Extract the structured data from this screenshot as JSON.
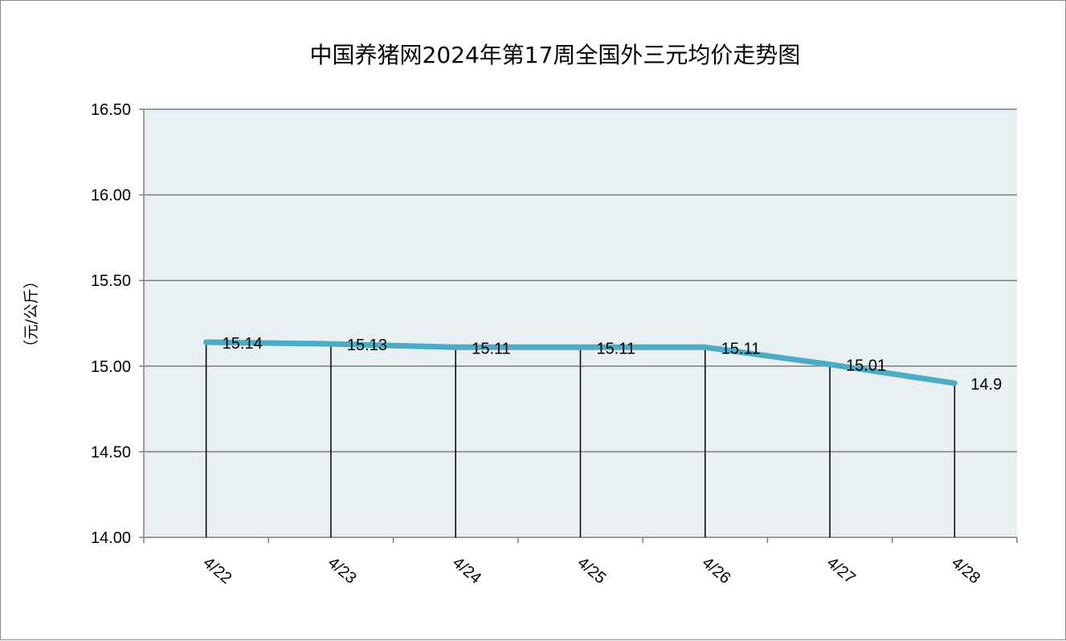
{
  "chart_data": {
    "type": "line",
    "title": "中国养猪网2024年第17周全国外三元均价走势图",
    "ylabel": "（元/公斤）",
    "xlabel": "",
    "categories": [
      "4/22",
      "4/23",
      "4/24",
      "4/25",
      "4/26",
      "4/27",
      "4/28"
    ],
    "series": [
      {
        "values": [
          15.14,
          15.13,
          15.11,
          15.11,
          15.11,
          15.01,
          14.9
        ],
        "data_labels": [
          "15.14",
          "15.13",
          "15.11",
          "15.11",
          "15.11",
          "15.01",
          "14.9"
        ]
      }
    ],
    "ylim": [
      14.0,
      16.5
    ],
    "y_ticks": [
      "14.00",
      "14.50",
      "15.00",
      "15.50",
      "16.00",
      "16.50"
    ],
    "y_tick_values": [
      14.0,
      14.5,
      15.0,
      15.5,
      16.0,
      16.5
    ],
    "grid": true,
    "drop_lines": true,
    "legend": "none",
    "colors": {
      "line": "#4bacc6",
      "plot_background": "#e9f0f3",
      "gridline": "#808080",
      "drop_line": "#000000",
      "border": "#8c8c8c"
    }
  }
}
